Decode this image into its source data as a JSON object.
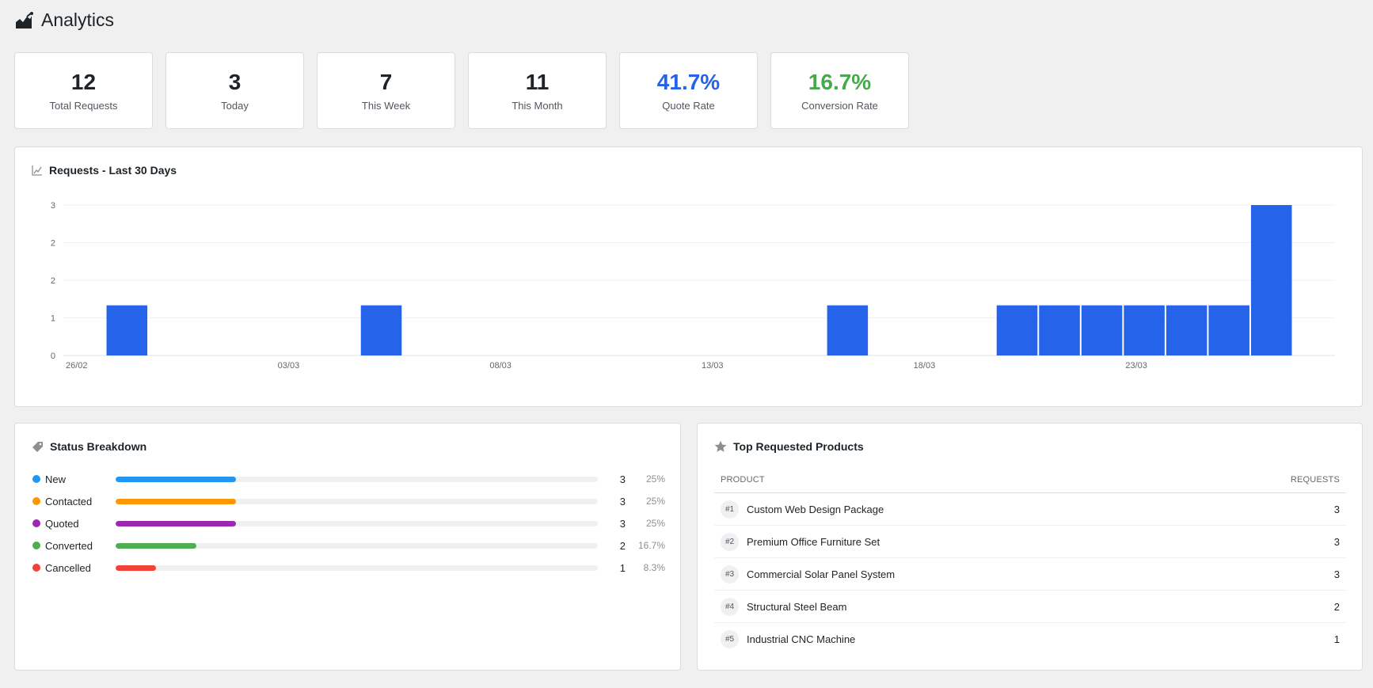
{
  "header": {
    "title": "Analytics",
    "icon": "chart-area-icon"
  },
  "stats": [
    {
      "value": "12",
      "label": "Total Requests",
      "color": "#1d2327"
    },
    {
      "value": "3",
      "label": "Today",
      "color": "#1d2327"
    },
    {
      "value": "7",
      "label": "This Week",
      "color": "#1d2327"
    },
    {
      "value": "11",
      "label": "This Month",
      "color": "#1d2327"
    },
    {
      "value": "41.7%",
      "label": "Quote Rate",
      "color": "#2563eb"
    },
    {
      "value": "16.7%",
      "label": "Conversion Rate",
      "color": "#46a94b"
    }
  ],
  "requests_chart": {
    "title": "Requests - Last 30 Days",
    "icon": "chart-line-icon"
  },
  "chart_data": {
    "type": "bar",
    "title": "Requests - Last 30 Days",
    "xlabel": "",
    "ylabel": "",
    "x_tick_labels": [
      "26/02",
      "03/03",
      "08/03",
      "13/03",
      "18/03",
      "23/03"
    ],
    "y_tick_labels": [
      "0",
      "1",
      "2",
      "2",
      "3"
    ],
    "ylim": [
      0,
      3
    ],
    "grid": true,
    "legend": "none",
    "color": "#2563eb",
    "categories": [
      "26/02",
      "27/02",
      "28/02",
      "01/03",
      "02/03",
      "03/03",
      "04/03",
      "05/03",
      "06/03",
      "07/03",
      "08/03",
      "09/03",
      "10/03",
      "11/03",
      "12/03",
      "13/03",
      "14/03",
      "15/03",
      "16/03",
      "17/03",
      "18/03",
      "19/03",
      "20/03",
      "21/03",
      "22/03",
      "23/03",
      "24/03",
      "25/03",
      "26/03",
      "27/03"
    ],
    "values": [
      0,
      1,
      0,
      0,
      0,
      0,
      0,
      1,
      0,
      0,
      0,
      0,
      0,
      0,
      0,
      0,
      0,
      0,
      1,
      0,
      0,
      0,
      1,
      1,
      1,
      1,
      1,
      1,
      3,
      0
    ]
  },
  "status_breakdown": {
    "title": "Status Breakdown",
    "icon": "tag-icon",
    "items": [
      {
        "name": "New",
        "count": "3",
        "pct": "25%",
        "fraction": 0.25,
        "color": "#2196f3"
      },
      {
        "name": "Contacted",
        "count": "3",
        "pct": "25%",
        "fraction": 0.25,
        "color": "#ff9800"
      },
      {
        "name": "Quoted",
        "count": "3",
        "pct": "25%",
        "fraction": 0.25,
        "color": "#9c27b0"
      },
      {
        "name": "Converted",
        "count": "2",
        "pct": "16.7%",
        "fraction": 0.167,
        "color": "#4caf50"
      },
      {
        "name": "Cancelled",
        "count": "1",
        "pct": "8.3%",
        "fraction": 0.083,
        "color": "#f44336"
      }
    ]
  },
  "top_products": {
    "title": "Top Requested Products",
    "icon": "star-icon",
    "col_product": "Product",
    "col_requests": "Requests",
    "rows": [
      {
        "rank": "#1",
        "name": "Custom Web Design Package",
        "requests": "3"
      },
      {
        "rank": "#2",
        "name": "Premium Office Furniture Set",
        "requests": "3"
      },
      {
        "rank": "#3",
        "name": "Commercial Solar Panel System",
        "requests": "3"
      },
      {
        "rank": "#4",
        "name": "Structural Steel Beam",
        "requests": "2"
      },
      {
        "rank": "#5",
        "name": "Industrial CNC Machine",
        "requests": "1"
      }
    ]
  }
}
